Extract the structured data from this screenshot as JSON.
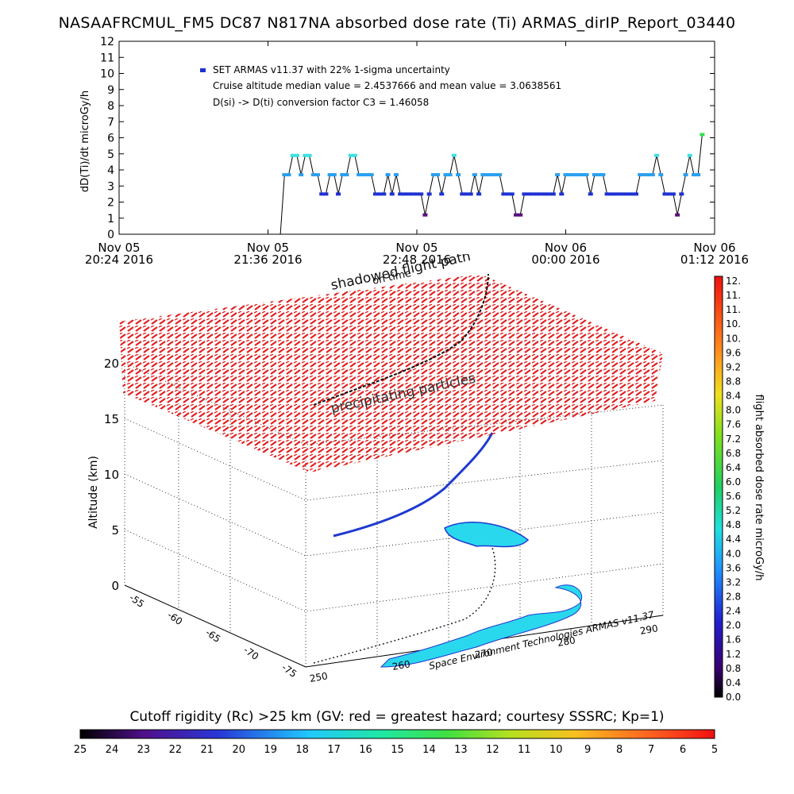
{
  "title": "NASAAFRCMUL_FM5 DC87 N817NA absorbed dose rate (Ti) ARMAS_dirIP_Report_03440",
  "chart_data": [
    {
      "type": "scatter",
      "ylabel": "dD(Ti)/dt microGy/h",
      "ylim": [
        0,
        12
      ],
      "yticks": [
        "0",
        "1",
        "2",
        "3",
        "4",
        "5",
        "6",
        "7",
        "8",
        "9",
        "10",
        "11",
        "12"
      ],
      "xticks": [
        {
          "top": "Nov 05",
          "bottom": "20:24 2016"
        },
        {
          "top": "Nov 05",
          "bottom": "21:36 2016"
        },
        {
          "top": "Nov 05",
          "bottom": "22:48 2016"
        },
        {
          "top": "Nov 06",
          "bottom": "00:00 2016"
        },
        {
          "top": "Nov 06",
          "bottom": "01:12 2016"
        }
      ],
      "annotations": [
        "SET ARMAS v11.37 with 22% 1-sigma uncertainty",
        "Cruise altitude median value = 2.4537666 and mean value = 3.0638561",
        "D(si) -> D(ti) conversion factor C3 = 1.46058"
      ],
      "legend_marker_color": "#1e32d2",
      "x_minutes": [
        80,
        82,
        84,
        86,
        88,
        90,
        92,
        94,
        96,
        98,
        100,
        102,
        104,
        106,
        108,
        110,
        112,
        114,
        116,
        118,
        120,
        122,
        124,
        126,
        128,
        130,
        132,
        134,
        136,
        138,
        140,
        142,
        144,
        146,
        148,
        150,
        152,
        154,
        156,
        158,
        160,
        162,
        164,
        166,
        168,
        170,
        172,
        174,
        176,
        178,
        180,
        182,
        184,
        186,
        188,
        190,
        192,
        194,
        196,
        198,
        200,
        202,
        204,
        206,
        208,
        210,
        212,
        214,
        216,
        218,
        220,
        222,
        224,
        226,
        228,
        230,
        232,
        234,
        236,
        238,
        240,
        242,
        244,
        246,
        248,
        250,
        252,
        254,
        256,
        258,
        260,
        262,
        264,
        266,
        268,
        270,
        272,
        274,
        276,
        278,
        280,
        282
      ],
      "y": [
        3.7,
        3.7,
        4.9,
        4.9,
        3.7,
        4.9,
        4.9,
        3.7,
        3.7,
        2.5,
        2.5,
        3.7,
        3.7,
        2.5,
        3.7,
        3.7,
        4.9,
        4.9,
        3.7,
        3.7,
        3.7,
        3.7,
        2.5,
        2.5,
        2.5,
        3.7,
        2.5,
        3.7,
        2.5,
        2.5,
        2.5,
        2.5,
        2.5,
        2.5,
        1.2,
        2.5,
        3.7,
        3.7,
        2.5,
        3.7,
        3.7,
        4.9,
        3.7,
        2.5,
        2.5,
        2.5,
        3.7,
        2.5,
        3.7,
        3.7,
        3.7,
        3.7,
        3.7,
        2.5,
        2.5,
        2.5,
        1.2,
        1.2,
        2.5,
        2.5,
        2.5,
        2.5,
        2.5,
        2.5,
        2.5,
        2.5,
        3.7,
        2.5,
        3.7,
        3.7,
        3.7,
        3.7,
        3.7,
        3.7,
        2.5,
        3.7,
        3.7,
        3.7,
        2.5,
        2.5,
        2.5,
        2.5,
        2.5,
        2.5,
        2.5,
        2.5,
        3.7,
        3.7,
        3.7,
        3.7,
        4.9,
        3.7,
        2.5,
        2.5,
        2.5,
        1.2,
        2.5,
        3.7,
        4.9,
        3.7,
        3.7,
        6.2
      ]
    },
    {
      "type": "scatter",
      "ylabel": "Altitude (km)",
      "zticks": [
        "0",
        "5",
        "10",
        "15",
        "20"
      ],
      "longitude_ticks": [
        "250",
        "260",
        "270",
        "280",
        "290"
      ],
      "latitude_ticks": [
        "-55",
        "-60",
        "-65",
        "-70",
        "-75"
      ],
      "annotations": [
        "shadowed flight path",
        "on time",
        "precipitating particles"
      ],
      "colorbar": {
        "label": "flight absorbed dose rate microGy/h",
        "ticks": [
          "12.",
          "11.",
          "11.",
          "10.",
          "10.",
          "9.6",
          "9.2",
          "8.8",
          "8.4",
          "8.0",
          "7.6",
          "7.2",
          "6.8",
          "6.4",
          "6.0",
          "5.6",
          "5.2",
          "4.8",
          "4.4",
          "4.0",
          "3.6",
          "3.2",
          "2.8",
          "2.4",
          "2.0",
          "1.6",
          "1.2",
          "0.8",
          "0.4",
          "0.0"
        ]
      }
    },
    {
      "type": "heatmap",
      "title": "Cutoff rigidity (Rc) >25 km (GV: red = greatest hazard; courtesy SSSRC; Kp=1)",
      "ticks": [
        "25",
        "24",
        "23",
        "22",
        "21",
        "20",
        "19",
        "18",
        "17",
        "16",
        "15",
        "14",
        "13",
        "12",
        "11",
        "10",
        "9",
        "8",
        "7",
        "6",
        "5"
      ]
    }
  ],
  "credit": "Space Environment Technologies ARMAS v11.37"
}
